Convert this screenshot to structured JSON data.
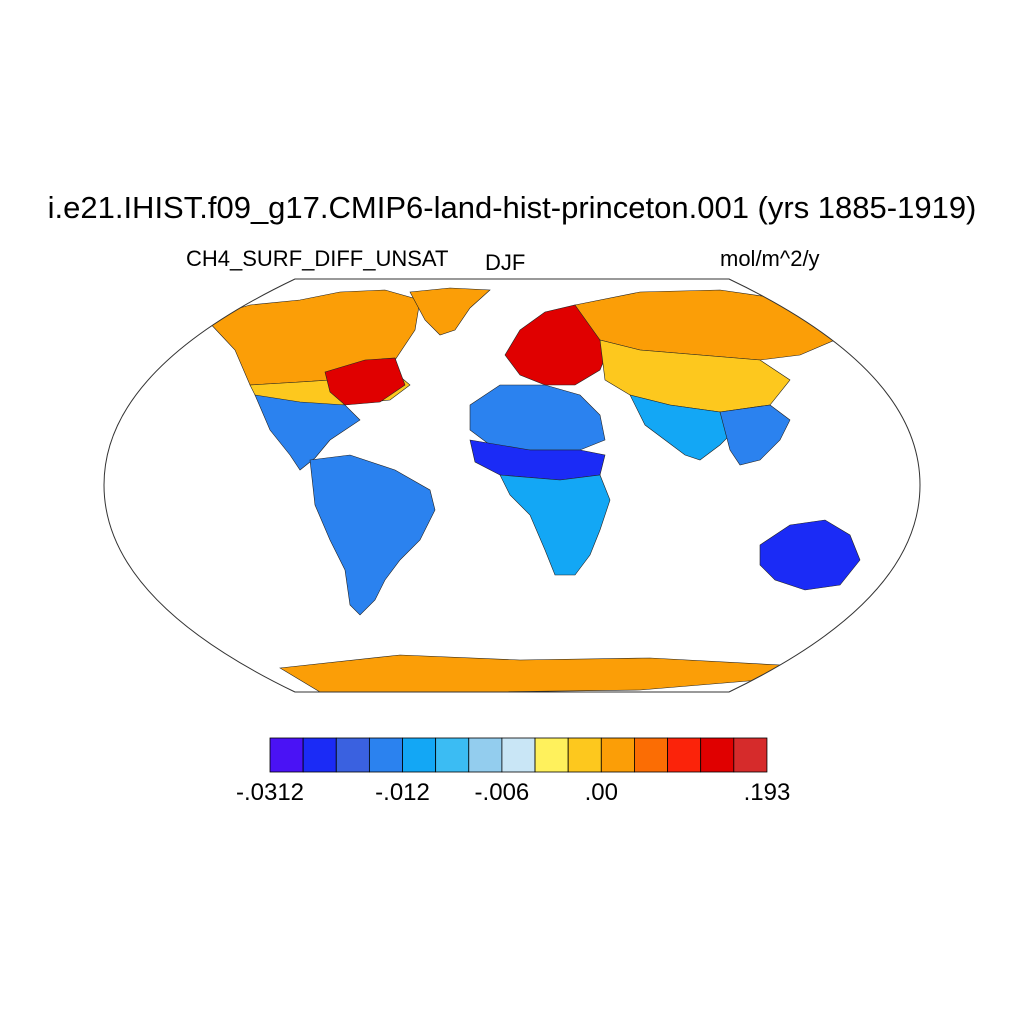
{
  "title": "i.e21.IHIST.f09_g17.CMIP6-land-hist-princeton.001 (yrs 1885-1919)",
  "left_label": "CH4_SURF_DIFF_UNSAT",
  "center_label": "DJF",
  "units_label": "mol/m^2/y",
  "colorbar": {
    "colors": [
      "#4a12f5",
      "#1b2bf6",
      "#3a61e0",
      "#2b82ef",
      "#13a7f5",
      "#3bbcf3",
      "#93cdee",
      "#c9e6f6",
      "#fff15c",
      "#fdc81e",
      "#fb9e07",
      "#fb6d04",
      "#fb230a",
      "#e00000",
      "#d62b2b"
    ],
    "tick_labels": [
      "-.0312",
      "-.012",
      "-.006",
      ".00",
      ".193"
    ],
    "tick_boundary_index": [
      0,
      4,
      7,
      10,
      15
    ]
  },
  "map": {
    "projection": "Robinson",
    "regions": [
      {
        "name": "arctic-north-america",
        "color": "#fb9e07"
      },
      {
        "name": "canada-east",
        "color": "#fdc81e"
      },
      {
        "name": "eastern-usa",
        "color": "#e00000"
      },
      {
        "name": "mexico-central-america",
        "color": "#2b82ef"
      },
      {
        "name": "amazon-south-america",
        "color": "#2b82ef"
      },
      {
        "name": "greenland-coast",
        "color": "#fb9e07"
      },
      {
        "name": "europe",
        "color": "#e00000"
      },
      {
        "name": "siberia",
        "color": "#fb9e07"
      },
      {
        "name": "central-asia",
        "color": "#fdc81e"
      },
      {
        "name": "north-africa-sahara",
        "color": "#2b82ef"
      },
      {
        "name": "sahel",
        "color": "#1b2bf6"
      },
      {
        "name": "central-africa",
        "color": "#13a7f5"
      },
      {
        "name": "south-asia",
        "color": "#13a7f5"
      },
      {
        "name": "southeast-asia",
        "color": "#2b82ef"
      },
      {
        "name": "australia",
        "color": "#1b2bf6"
      },
      {
        "name": "antarctica-coast",
        "color": "#fb9e07"
      }
    ]
  }
}
